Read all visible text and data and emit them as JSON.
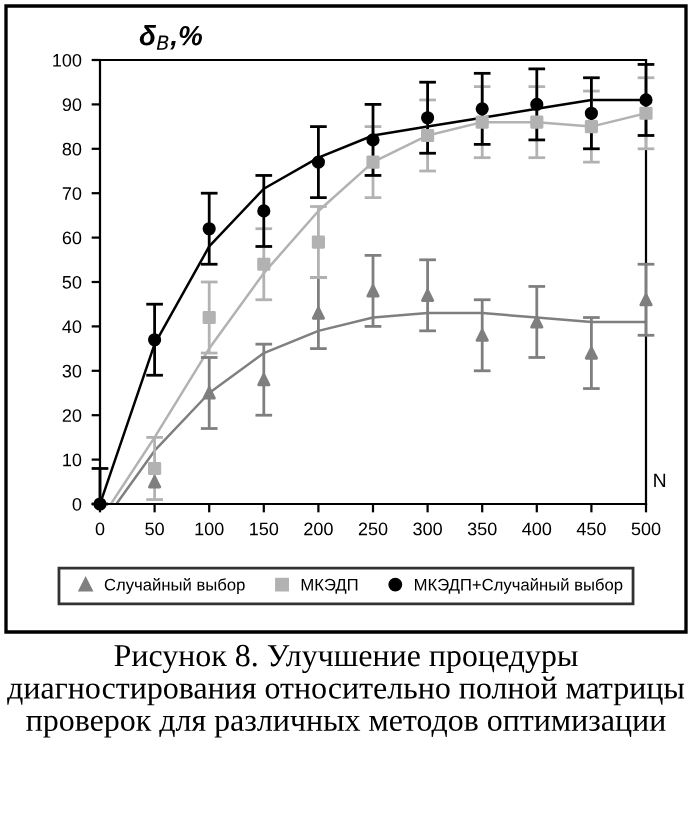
{
  "chart_data": {
    "type": "scatter",
    "ylabel": "δ$_{B}$,%",
    "xlabel": "N",
    "x": [
      0,
      50,
      100,
      150,
      200,
      250,
      300,
      350,
      400,
      450,
      500
    ],
    "xlim": [
      0,
      500
    ],
    "xticks": [
      0,
      50,
      100,
      150,
      200,
      250,
      300,
      350,
      400,
      450,
      500
    ],
    "ylim": [
      0,
      100
    ],
    "yticks": [
      0,
      10,
      20,
      30,
      40,
      50,
      60,
      70,
      80,
      90,
      100
    ],
    "grid": false,
    "legend": "bottom",
    "series": [
      {
        "name": "Случайный выбор",
        "color": "#7f7f7f",
        "marker": "triangle",
        "values": [
          null,
          5,
          25,
          28,
          43,
          48,
          47,
          38,
          41,
          34,
          46
        ],
        "errors": [
          null,
          null,
          8,
          8,
          8,
          8,
          8,
          8,
          8,
          8,
          8
        ]
      },
      {
        "name": "МКЭДП",
        "color": "#b2b2b2",
        "marker": "square",
        "values": [
          null,
          8,
          42,
          54,
          59,
          77,
          83,
          86,
          86,
          85,
          88
        ],
        "errors": [
          null,
          7,
          8,
          8,
          8,
          8,
          8,
          8,
          8,
          8,
          8
        ]
      },
      {
        "name": "МКЭДП+Случайный выбор",
        "color": "#000000",
        "marker": "circle",
        "values": [
          0,
          37,
          62,
          66,
          77,
          82,
          87,
          89,
          90,
          88,
          91
        ],
        "errors": [
          [
            0,
            8
          ],
          8,
          8,
          8,
          8,
          8,
          8,
          8,
          8,
          8,
          8
        ]
      },
      {
        "type": "line",
        "color": "#7f7f7f",
        "marker": "none",
        "line_style": "solid",
        "x": [
          15,
          50,
          100,
          150,
          200,
          250,
          300,
          350,
          400,
          450,
          500
        ],
        "values": [
          0,
          12,
          25,
          34,
          39,
          42,
          43,
          43,
          42,
          41,
          41
        ]
      },
      {
        "type": "line",
        "color": "#b2b2b2",
        "marker": "none",
        "line_style": "solid",
        "x": [
          10,
          50,
          100,
          150,
          200,
          250,
          300,
          350,
          400,
          450,
          500
        ],
        "values": [
          0,
          15,
          35,
          52,
          66,
          77,
          83,
          86,
          86,
          85,
          88
        ]
      },
      {
        "type": "line",
        "color": "#000000",
        "marker": "none",
        "line_style": "solid",
        "x": [
          0,
          50,
          100,
          150,
          200,
          250,
          300,
          350,
          400,
          450,
          500
        ],
        "values": [
          0,
          36,
          58,
          71,
          78,
          83,
          85,
          87,
          89,
          91,
          91
        ]
      }
    ],
    "annotations": [
      "Рисунок 8. Улучшение процедуры диагностирования относительно полной матрицы проверок для различных методов оптимизации"
    ]
  }
}
